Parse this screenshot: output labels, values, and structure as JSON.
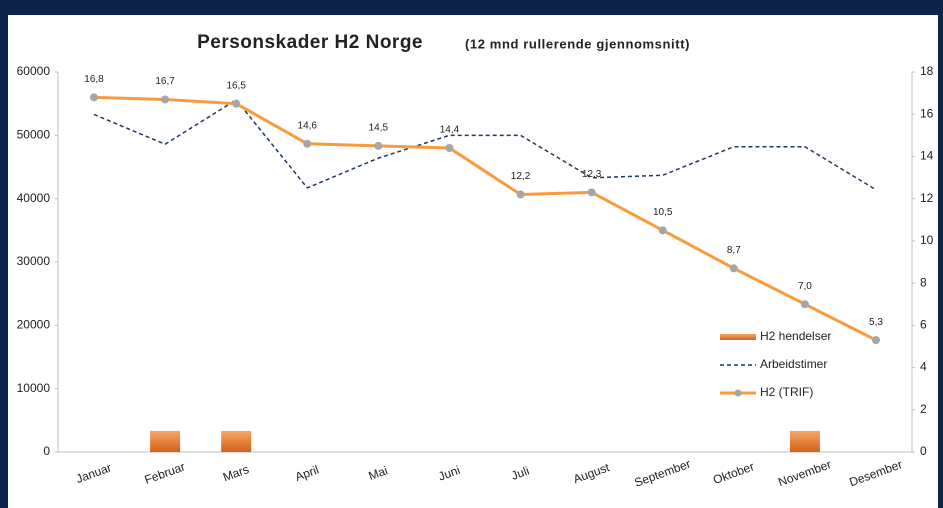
{
  "chart_data": {
    "type": "combo",
    "title": "Personskader H2 Norge",
    "subtitle": "(12 mnd rullerende gjennomsnitt)",
    "categories": [
      "Januar",
      "Februar",
      "Mars",
      "April",
      "Mai",
      "Juni",
      "Juli",
      "August",
      "September",
      "Oktober",
      "November",
      "Desember"
    ],
    "ylim": [
      0,
      60000
    ],
    "yticks": [
      0,
      10000,
      20000,
      30000,
      40000,
      50000,
      60000
    ],
    "y2lim": [
      0,
      18
    ],
    "y2ticks": [
      0,
      2,
      4,
      6,
      8,
      10,
      12,
      14,
      16,
      18
    ],
    "grid": false,
    "legend": "lower right",
    "series": [
      {
        "name": "H2 hendelser",
        "type": "bar",
        "axis": "y2",
        "color": "#e8781f",
        "values": [
          0,
          1,
          1,
          0,
          0,
          0,
          0,
          0,
          0,
          0,
          1,
          0
        ]
      },
      {
        "name": "Arbeidstimer",
        "type": "line",
        "style": "dashed",
        "color": "#1f3864",
        "values": [
          53300,
          48600,
          55600,
          41700,
          46400,
          50000,
          50000,
          43300,
          43700,
          48200,
          48200,
          41400
        ]
      },
      {
        "name": "H2 (TRIF)",
        "type": "line",
        "style": "solid",
        "axis": "y2",
        "color": "#f79b3c",
        "marker_color": "#a6a6a6",
        "values": [
          16.8,
          16.7,
          16.5,
          14.6,
          14.5,
          14.4,
          12.2,
          12.3,
          10.5,
          8.7,
          7.0,
          5.3
        ],
        "value_labels": [
          "16,8",
          "16,7",
          "16,5",
          "14,6",
          "14,5",
          "14,4",
          "12,2",
          "12,3",
          "10,5",
          "8,7",
          "7,0",
          "5,3"
        ]
      }
    ]
  }
}
